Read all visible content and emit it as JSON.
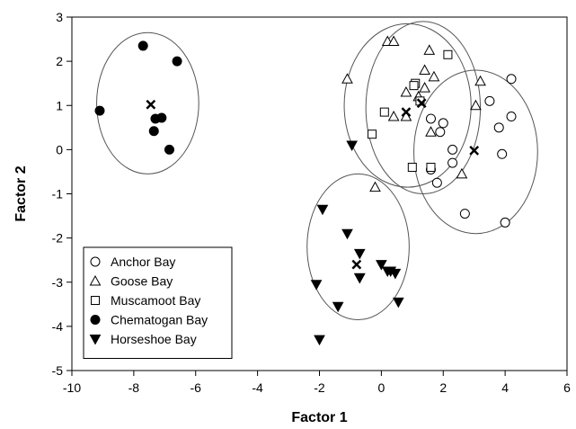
{
  "chart_data": {
    "type": "scatter",
    "xlabel": "Factor 1",
    "ylabel": "Factor 2",
    "xlim": [
      -10,
      6
    ],
    "ylim": [
      -5,
      3
    ],
    "xticks": [
      -10,
      -8,
      -6,
      -4,
      -2,
      0,
      2,
      4,
      6
    ],
    "yticks": [
      -5,
      -4,
      -3,
      -2,
      -1,
      0,
      1,
      2,
      3
    ],
    "xtick_labels": [
      "-10",
      "-8",
      "-6",
      "-4",
      "-2",
      "0",
      "2",
      "4",
      "6"
    ],
    "ytick_labels": [
      "-5",
      "-4",
      "-3",
      "-2",
      "-1",
      "0",
      "1",
      "2",
      "3"
    ],
    "grid": false,
    "legend_position": "bottom-left",
    "series": [
      {
        "name": "Anchor Bay",
        "marker": "open-circle",
        "color": "#000000",
        "x": [
          4.2,
          4.2,
          3.8,
          3.9,
          2.3,
          2.3,
          1.8,
          1.6,
          2.7,
          4.0,
          1.9,
          2.0,
          3.5,
          1.6
        ],
        "y": [
          1.6,
          0.75,
          0.5,
          -0.1,
          0.0,
          -0.3,
          -0.75,
          -0.45,
          -1.45,
          -1.65,
          0.4,
          0.6,
          1.1,
          0.7
        ],
        "centroid": [
          3.0,
          -0.02
        ],
        "ellipse": {
          "cx": 3.05,
          "cy": -0.05,
          "rx": 2.0,
          "ry": 1.85
        }
      },
      {
        "name": "Goose Bay",
        "marker": "open-triangle-up",
        "color": "#000000",
        "x": [
          0.2,
          0.4,
          1.4,
          1.7,
          1.55,
          -1.1,
          0.8,
          1.2,
          1.4,
          3.2,
          3.05,
          0.8,
          0.4,
          1.6,
          2.6,
          -0.2
        ],
        "y": [
          2.45,
          2.45,
          1.8,
          1.65,
          2.25,
          1.6,
          1.3,
          1.2,
          1.4,
          1.55,
          1.0,
          0.75,
          0.75,
          0.4,
          -0.55,
          -0.85
        ],
        "centroid": [
          1.3,
          1.05
        ],
        "ellipse": {
          "cx": 0.85,
          "cy": 1.0,
          "rx": 2.05,
          "ry": 1.85
        }
      },
      {
        "name": "Muscamoot Bay",
        "marker": "open-square",
        "color": "#000000",
        "x": [
          2.15,
          1.1,
          1.05,
          1.25,
          0.1,
          -0.3,
          1.0,
          1.6
        ],
        "y": [
          2.15,
          1.5,
          1.45,
          1.1,
          0.85,
          0.35,
          -0.4,
          -0.4
        ],
        "centroid": [
          0.8,
          0.85
        ],
        "ellipse": {
          "cx": 1.35,
          "cy": 0.95,
          "rx": 1.85,
          "ry": 1.95
        }
      },
      {
        "name": "Chematogan Bay",
        "marker": "filled-circle",
        "color": "#000000",
        "x": [
          -7.7,
          -6.6,
          -9.1,
          -7.3,
          -7.1,
          -7.35,
          -6.85
        ],
        "y": [
          2.35,
          2.0,
          0.88,
          0.7,
          0.72,
          0.42,
          0.0
        ],
        "centroid": [
          -7.45,
          1.02
        ],
        "ellipse": {
          "cx": -7.55,
          "cy": 1.05,
          "rx": 1.65,
          "ry": 1.6
        }
      },
      {
        "name": "Horseshoe Bay",
        "marker": "filled-triangle-down",
        "color": "#000000",
        "x": [
          -0.95,
          -1.9,
          -1.1,
          -0.7,
          -0.7,
          0.0,
          0.2,
          0.45,
          0.3,
          -2.1,
          -0.7,
          -1.4,
          0.55,
          -2.0
        ],
        "y": [
          0.1,
          -1.35,
          -1.9,
          -2.35,
          -2.9,
          -2.6,
          -2.75,
          -2.8,
          -2.75,
          -3.05,
          -2.9,
          -3.55,
          -3.45,
          -4.3
        ],
        "centroid": [
          -0.8,
          -2.6
        ],
        "ellipse": {
          "cx": -0.75,
          "cy": -2.2,
          "rx": 1.65,
          "ry": 1.65
        }
      }
    ]
  }
}
